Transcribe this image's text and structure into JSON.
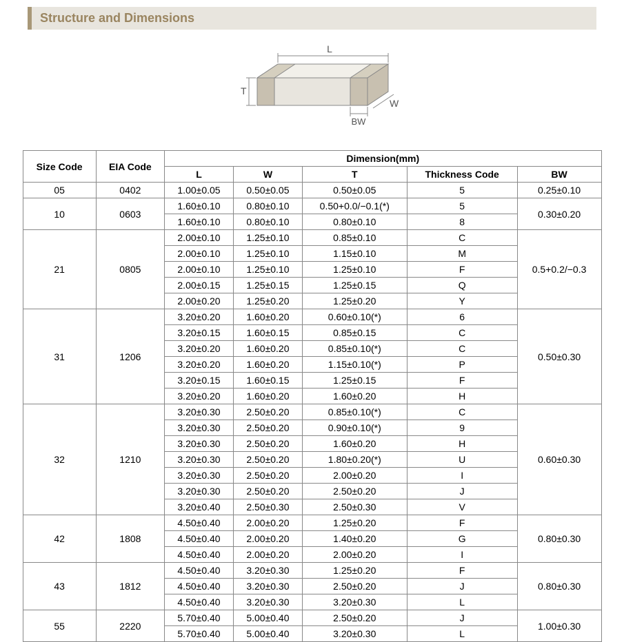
{
  "section_title": "Structure and Dimensions",
  "diagram": {
    "labels": {
      "L": "L",
      "W": "W",
      "T": "T",
      "BW": "BW"
    },
    "stroke_color": "#888888",
    "fill_top": "#f2f0ea",
    "fill_side": "#d8d4c8",
    "fill_front": "#e8e5de",
    "terminal_fill": "#c8c0b0",
    "terminal_edge": "#d5cfbf"
  },
  "table": {
    "header_size": "Size Code",
    "header_eia": "EIA Code",
    "header_dim": "Dimension(mm)",
    "sub_L": "L",
    "sub_W": "W",
    "sub_T": "T",
    "sub_thick": "Thickness  Code",
    "sub_BW": "BW",
    "groups": [
      {
        "size": "05",
        "eia": "0402",
        "bw": "0.25±0.10",
        "rows": [
          {
            "L": "1.00±0.05",
            "W": "0.50±0.05",
            "T": "0.50±0.05",
            "code": "5"
          }
        ]
      },
      {
        "size": "10",
        "eia": "0603",
        "bw": "0.30±0.20",
        "rows": [
          {
            "L": "1.60±0.10",
            "W": "0.80±0.10",
            "T": "0.50+0.0/−0.1(*)",
            "code": "5"
          },
          {
            "L": "1.60±0.10",
            "W": "0.80±0.10",
            "T": "0.80±0.10",
            "code": "8"
          }
        ]
      },
      {
        "size": "21",
        "eia": "0805",
        "bw": "0.5+0.2/−0.3",
        "rows": [
          {
            "L": "2.00±0.10",
            "W": "1.25±0.10",
            "T": "0.85±0.10",
            "code": "C"
          },
          {
            "L": "2.00±0.10",
            "W": "1.25±0.10",
            "T": "1.15±0.10",
            "code": "M"
          },
          {
            "L": "2.00±0.10",
            "W": "1.25±0.10",
            "T": "1.25±0.10",
            "code": "F"
          },
          {
            "L": "2.00±0.15",
            "W": "1.25±0.15",
            "T": "1.25±0.15",
            "code": "Q"
          },
          {
            "L": "2.00±0.20",
            "W": "1.25±0.20",
            "T": "1.25±0.20",
            "code": "Y"
          }
        ]
      },
      {
        "size": "31",
        "eia": "1206",
        "bw": "0.50±0.30",
        "rows": [
          {
            "L": "3.20±0.20",
            "W": "1.60±0.20",
            "T": "0.60±0.10(*)",
            "code": "6"
          },
          {
            "L": "3.20±0.15",
            "W": "1.60±0.15",
            "T": "0.85±0.15",
            "code": "C"
          },
          {
            "L": "3.20±0.20",
            "W": "1.60±0.20",
            "T": "0.85±0.10(*)",
            "code": "C"
          },
          {
            "L": "3.20±0.20",
            "W": "1.60±0.20",
            "T": "1.15±0.10(*)",
            "code": "P"
          },
          {
            "L": "3.20±0.15",
            "W": "1.60±0.15",
            "T": "1.25±0.15",
            "code": "F"
          },
          {
            "L": "3.20±0.20",
            "W": "1.60±0.20",
            "T": "1.60±0.20",
            "code": "H"
          }
        ]
      },
      {
        "size": "32",
        "eia": "1210",
        "bw": "0.60±0.30",
        "rows": [
          {
            "L": "3.20±0.30",
            "W": "2.50±0.20",
            "T": "0.85±0.10(*)",
            "code": "C"
          },
          {
            "L": "3.20±0.30",
            "W": "2.50±0.20",
            "T": "0.90±0.10(*)",
            "code": "9"
          },
          {
            "L": "3.20±0.30",
            "W": "2.50±0.20",
            "T": "1.60±0.20",
            "code": "H"
          },
          {
            "L": "3.20±0.30",
            "W": "2.50±0.20",
            "T": "1.80±0.20(*)",
            "code": "U"
          },
          {
            "L": "3.20±0.30",
            "W": "2.50±0.20",
            "T": "2.00±0.20",
            "code": "I"
          },
          {
            "L": "3.20±0.30",
            "W": "2.50±0.20",
            "T": "2.50±0.20",
            "code": "J"
          },
          {
            "L": "3.20±0.40",
            "W": "2.50±0.30",
            "T": "2.50±0.30",
            "code": "V"
          }
        ]
      },
      {
        "size": "42",
        "eia": "1808",
        "bw": "0.80±0.30",
        "rows": [
          {
            "L": "4.50±0.40",
            "W": "2.00±0.20",
            "T": "1.25±0.20",
            "code": "F"
          },
          {
            "L": "4.50±0.40",
            "W": "2.00±0.20",
            "T": "1.40±0.20",
            "code": "G"
          },
          {
            "L": "4.50±0.40",
            "W": "2.00±0.20",
            "T": "2.00±0.20",
            "code": "I"
          }
        ]
      },
      {
        "size": "43",
        "eia": "1812",
        "bw": "0.80±0.30",
        "rows": [
          {
            "L": "4.50±0.40",
            "W": "3.20±0.30",
            "T": "1.25±0.20",
            "code": "F"
          },
          {
            "L": "4.50±0.40",
            "W": "3.20±0.30",
            "T": "2.50±0.20",
            "code": "J"
          },
          {
            "L": "4.50±0.40",
            "W": "3.20±0.30",
            "T": "3.20±0.30",
            "code": "L"
          }
        ]
      },
      {
        "size": "55",
        "eia": "2220",
        "bw": "1.00±0.30",
        "rows": [
          {
            "L": "5.70±0.40",
            "W": "5.00±0.40",
            "T": "2.50±0.20",
            "code": "J"
          },
          {
            "L": "5.70±0.40",
            "W": "5.00±0.40",
            "T": "3.20±0.30",
            "code": "L"
          }
        ]
      }
    ]
  }
}
